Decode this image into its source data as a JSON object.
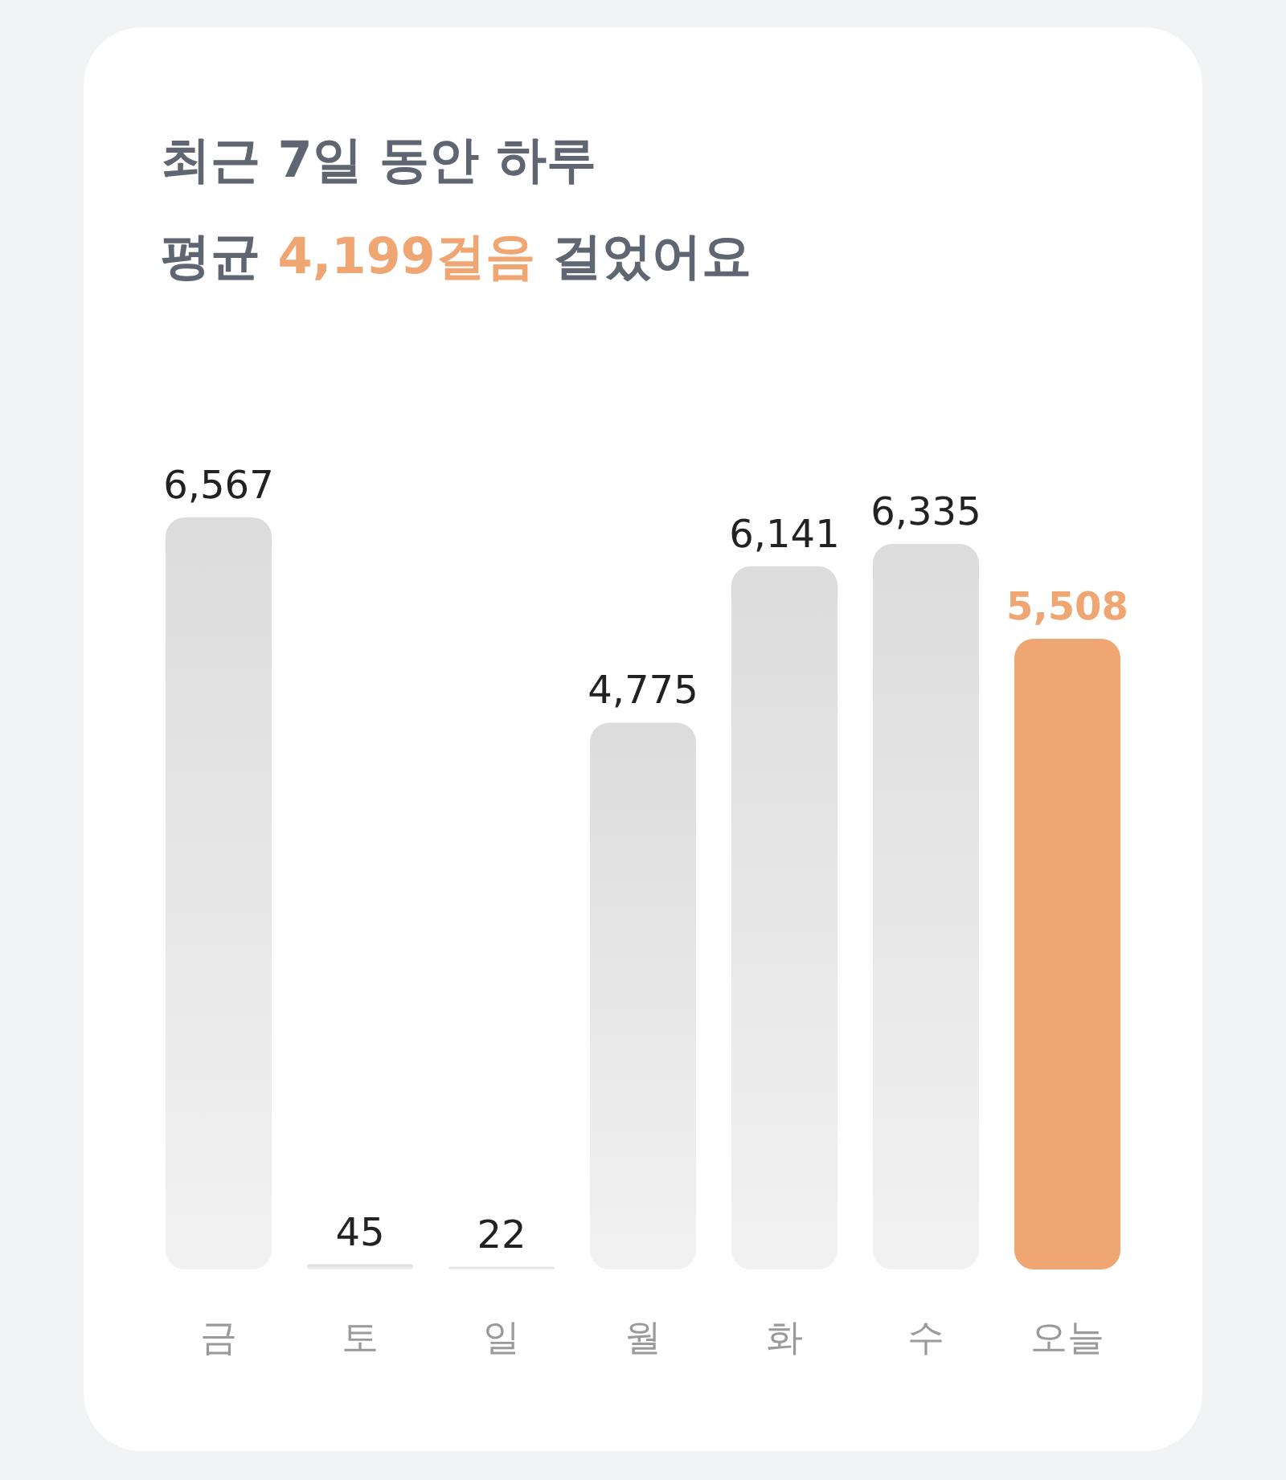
{
  "chart_data": {
    "type": "bar",
    "title": "최근 7일 동안 하루",
    "subtitle": "평균 4,199걸음 걸었어요",
    "categories": [
      "금",
      "토",
      "일",
      "월",
      "화",
      "수",
      "오늘"
    ],
    "values": [
      6567,
      45,
      22,
      4775,
      6141,
      6335,
      5508
    ],
    "colors": [
      "#dcdcdc",
      "#dcdcdc",
      "#dcdcdc",
      "#dcdcdc",
      "#dcdcdc",
      "#dcdcdc",
      "#f0a672"
    ],
    "value_labels": [
      "6,567",
      "45",
      "22",
      "4,775",
      "6,141",
      "6,335",
      "5,508"
    ]
  }
}
